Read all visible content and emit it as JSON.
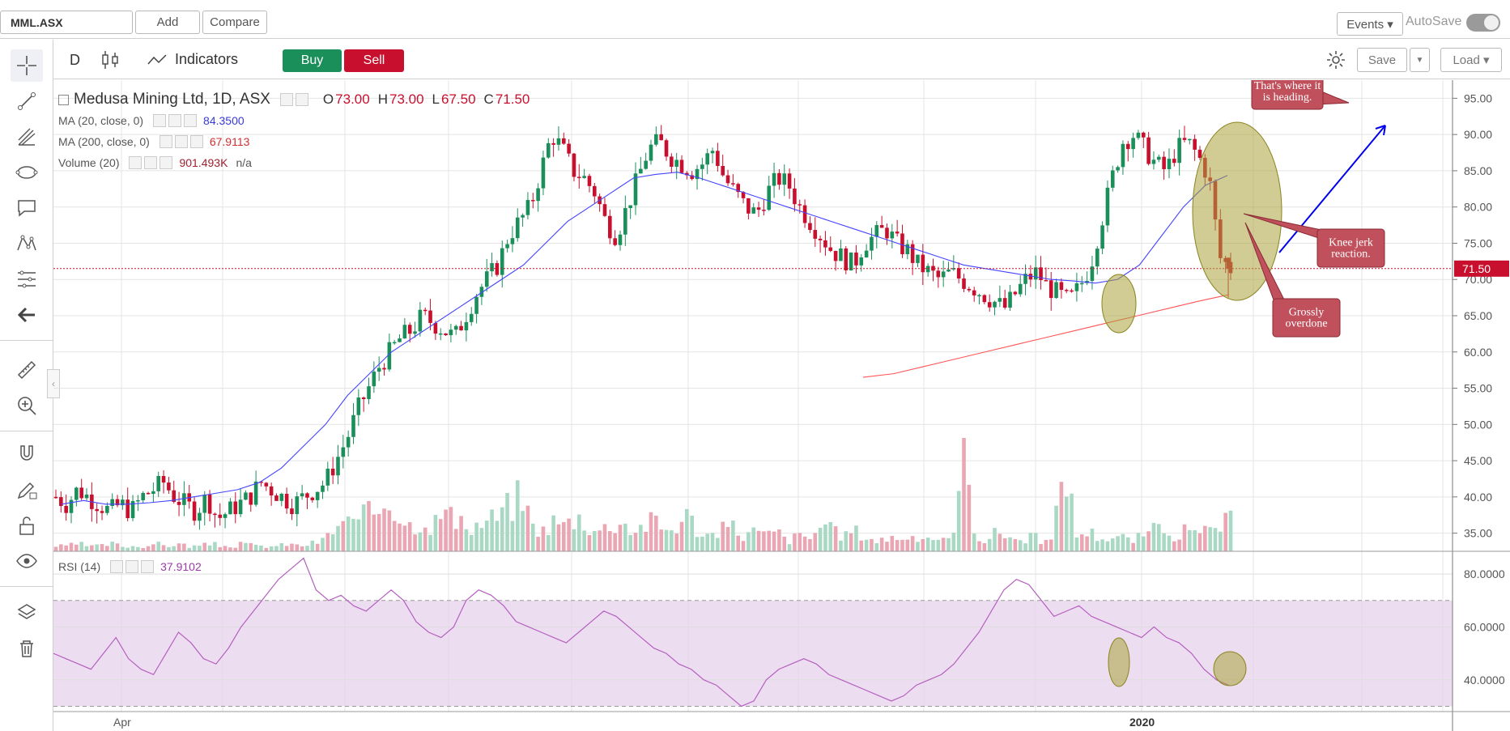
{
  "topbar": {
    "symbol": "MML.ASX",
    "add_label": "Add",
    "compare_label": "Compare",
    "events_label": "Events ▾",
    "autosave_label": "AutoSave"
  },
  "toolbar": {
    "interval": "D",
    "indicators_label": "Indicators",
    "buy_label": "Buy",
    "sell_label": "Sell",
    "save_label": "Save",
    "load_label": "Load ▾"
  },
  "left_tools": [
    "crosshair-icon",
    "trend-line-icon",
    "pitchfork-icon",
    "shapes-icon",
    "comment-icon",
    "pattern-icon",
    "fib-icon",
    "back-arrow-icon",
    "ruler-icon",
    "zoom-in-icon",
    "magnet-icon",
    "lock-draw-icon",
    "unlock-icon",
    "eye-icon",
    "layers-icon",
    "trash-icon"
  ],
  "legend": {
    "title": "Medusa Mining Ltd, 1D, ASX",
    "o_label": "O",
    "o_value": "73.00",
    "h_label": "H",
    "h_value": "73.00",
    "l_label": "L",
    "l_value": "67.50",
    "c_label": "C",
    "c_value": "71.50",
    "ma20_label": "MA (20, close, 0)",
    "ma20_value": "84.3500",
    "ma200_label": "MA (200, close, 0)",
    "ma200_value": "67.9113",
    "vol_label": "Volume (20)",
    "vol_value": "901.493K",
    "vol_extra": "n/a",
    "rsi_label": "RSI (14)",
    "rsi_value": "37.9102"
  },
  "annotations": {
    "heading": "That's where it is heading.",
    "knee": "Knee jerk reaction.",
    "overdone": "Grossly overdone"
  },
  "colors": {
    "up": "#1b8f5a",
    "down": "#c8102e",
    "ma20": "#4444ff",
    "ma200": "#ff5555",
    "rsi": "#b55fc0",
    "rsi_band": "#e8d5ec",
    "ellipse": "#a9a33a",
    "callout": "#c0505c",
    "arrow": "#0000ee"
  },
  "chart_data": {
    "type": "candlestick",
    "price_axis": {
      "ticks": [
        95,
        90,
        85,
        80,
        75,
        70,
        65,
        60,
        55,
        50,
        45,
        40,
        35
      ],
      "range": [
        32.5,
        97.5
      ],
      "last": 71.5
    },
    "rsi_axis": {
      "ticks": [
        80,
        60,
        40
      ],
      "range": [
        28,
        88
      ],
      "overbought": 70,
      "oversold": 30
    },
    "x_labels": [
      "Apr",
      "2020"
    ],
    "price_path": [
      40,
      39,
      41,
      40,
      39,
      38,
      39,
      38,
      40,
      41,
      42,
      40,
      39,
      38,
      40,
      37,
      38,
      39,
      40,
      42,
      41,
      40,
      39,
      40,
      41,
      42,
      45,
      48,
      52,
      55,
      58,
      60,
      62,
      63,
      65,
      64,
      63,
      62,
      65,
      68,
      70,
      72,
      76,
      78,
      80,
      85,
      90,
      88,
      85,
      84,
      82,
      78,
      76,
      80,
      84,
      88,
      89,
      87,
      86,
      85,
      86,
      88,
      84,
      82,
      80,
      79,
      82,
      84,
      83,
      80,
      78,
      76,
      74,
      73,
      72,
      75,
      76,
      77,
      75,
      74,
      72,
      71,
      70,
      71,
      70,
      69,
      68,
      67,
      66,
      68,
      70,
      71,
      69,
      68,
      67,
      69,
      72,
      78,
      84,
      89,
      90,
      88,
      86,
      85,
      88,
      89,
      87,
      84,
      73,
      71.5
    ],
    "volume_path": [
      2,
      2,
      3,
      2,
      2,
      3,
      2,
      2,
      2,
      3,
      2,
      3,
      2,
      2,
      3,
      2,
      2,
      3,
      2,
      2,
      2,
      3,
      2,
      3,
      4,
      8,
      12,
      10,
      14,
      16,
      22,
      14,
      10,
      12,
      10,
      16,
      12,
      8,
      10,
      12,
      14,
      18,
      22,
      10,
      8,
      12,
      10,
      14,
      10,
      8,
      10,
      12,
      8,
      10,
      12,
      8,
      10,
      14,
      8,
      6,
      8,
      10,
      6,
      8,
      6,
      8,
      4,
      6,
      5,
      10,
      8,
      6,
      8,
      6,
      4,
      5,
      6,
      4,
      5,
      6,
      4,
      5,
      40,
      6,
      4,
      8,
      6,
      4,
      6,
      4,
      4,
      40,
      6,
      8,
      6,
      5,
      6,
      4,
      6,
      8,
      10,
      6,
      8,
      6,
      8,
      10,
      12
    ],
    "ma20_path": [
      39,
      39.5,
      39,
      39,
      39.2,
      39.5,
      40,
      40.5,
      41,
      42,
      44,
      47,
      50,
      54,
      57,
      60,
      62,
      64,
      66,
      68,
      70,
      72,
      75,
      78,
      80,
      82,
      84,
      84.5,
      84.8,
      84,
      83,
      82,
      81,
      80,
      79,
      78,
      77,
      76,
      75,
      74,
      73,
      72,
      71.5,
      71,
      70.5,
      70,
      69.8,
      69.5,
      70,
      72,
      76,
      80,
      83,
      84.35
    ],
    "ma200_path": [
      56.5,
      57,
      58,
      59,
      60,
      61,
      62,
      63,
      64,
      65,
      66,
      67,
      67.9113
    ],
    "rsi_path": [
      50,
      48,
      46,
      44,
      50,
      56,
      48,
      44,
      42,
      50,
      58,
      54,
      48,
      46,
      52,
      60,
      66,
      72,
      78,
      82,
      86,
      74,
      70,
      72,
      68,
      66,
      70,
      74,
      70,
      62,
      58,
      56,
      60,
      70,
      74,
      72,
      68,
      62,
      60,
      58,
      56,
      54,
      58,
      62,
      66,
      64,
      60,
      56,
      52,
      50,
      46,
      44,
      40,
      38,
      34,
      30,
      32,
      40,
      44,
      46,
      48,
      46,
      42,
      40,
      38,
      36,
      34,
      32,
      34,
      38,
      40,
      42,
      46,
      52,
      58,
      66,
      74,
      78,
      76,
      70,
      64,
      66,
      68,
      64,
      62,
      60,
      58,
      56,
      60,
      56,
      54,
      50,
      44,
      40,
      37.91
    ]
  }
}
